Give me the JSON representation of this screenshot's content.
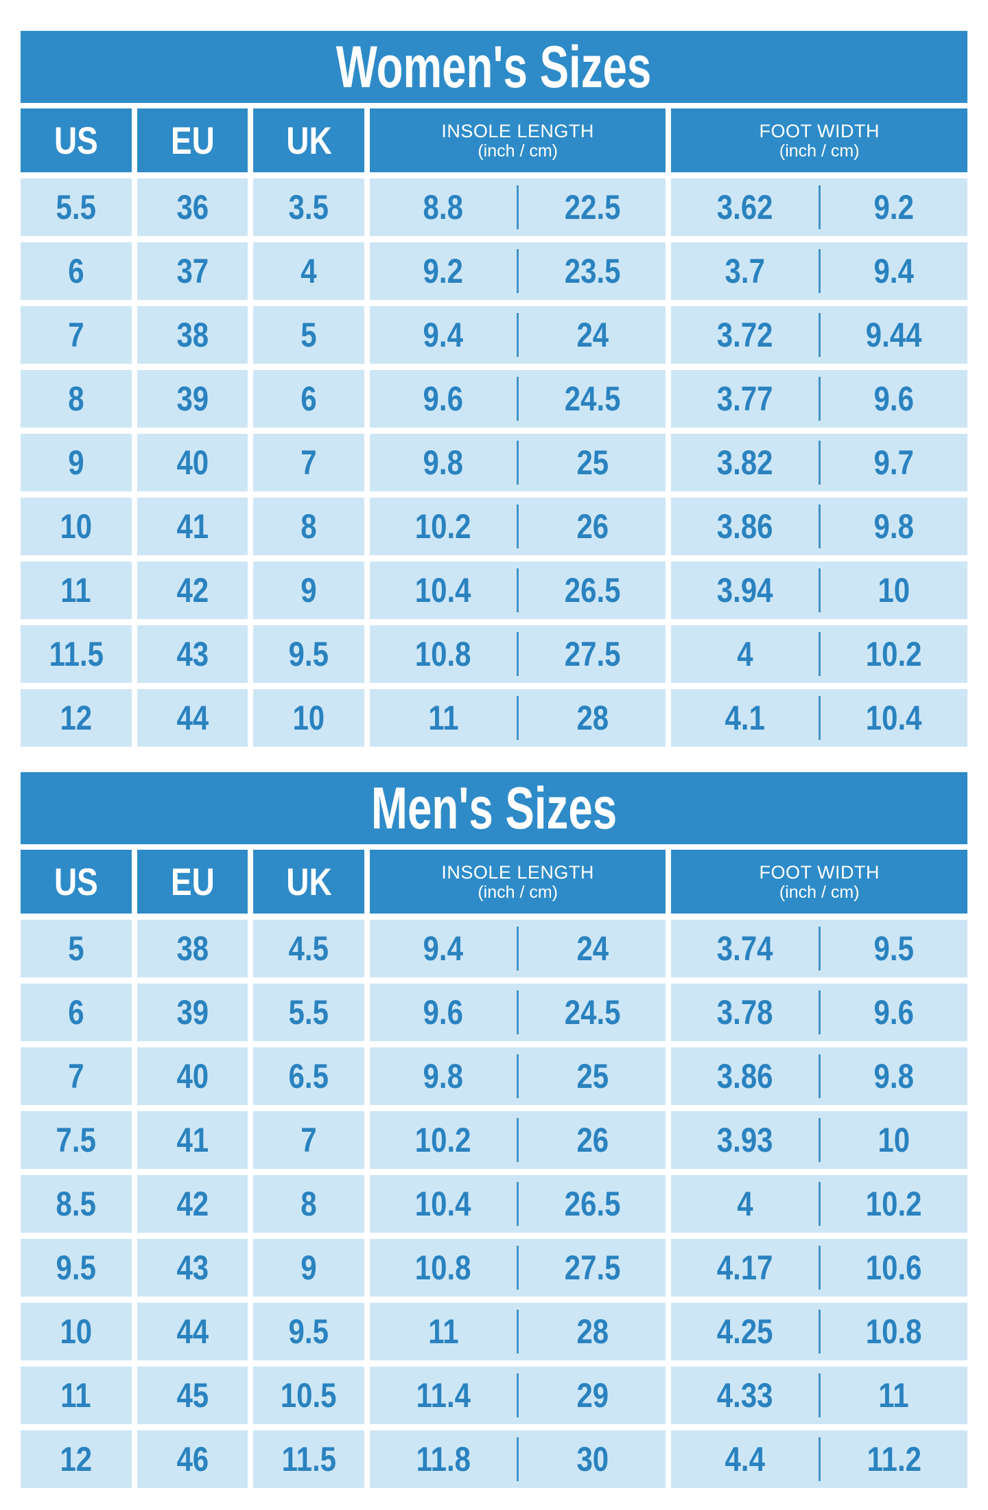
{
  "colors": {
    "header_blue": "#2e8bc8",
    "cell_light_blue": "#cde6f6",
    "value_text_blue": "#2a82bf",
    "background": "#ffffff"
  },
  "chart_data": [
    {
      "type": "table",
      "title": "Women's Sizes",
      "headers": {
        "us": "US",
        "eu": "EU",
        "uk": "UK",
        "insole_line1": "INSOLE LENGTH",
        "insole_line2": "(inch / cm)",
        "foot_line1": "FOOT WIDTH",
        "foot_line2": "(inch / cm)"
      },
      "rows": [
        {
          "us": "5.5",
          "eu": "36",
          "uk": "3.5",
          "insole_in": "8.8",
          "insole_cm": "22.5",
          "width_in": "3.62",
          "width_cm": "9.2"
        },
        {
          "us": "6",
          "eu": "37",
          "uk": "4",
          "insole_in": "9.2",
          "insole_cm": "23.5",
          "width_in": "3.7",
          "width_cm": "9.4"
        },
        {
          "us": "7",
          "eu": "38",
          "uk": "5",
          "insole_in": "9.4",
          "insole_cm": "24",
          "width_in": "3.72",
          "width_cm": "9.44"
        },
        {
          "us": "8",
          "eu": "39",
          "uk": "6",
          "insole_in": "9.6",
          "insole_cm": "24.5",
          "width_in": "3.77",
          "width_cm": "9.6"
        },
        {
          "us": "9",
          "eu": "40",
          "uk": "7",
          "insole_in": "9.8",
          "insole_cm": "25",
          "width_in": "3.82",
          "width_cm": "9.7"
        },
        {
          "us": "10",
          "eu": "41",
          "uk": "8",
          "insole_in": "10.2",
          "insole_cm": "26",
          "width_in": "3.86",
          "width_cm": "9.8"
        },
        {
          "us": "11",
          "eu": "42",
          "uk": "9",
          "insole_in": "10.4",
          "insole_cm": "26.5",
          "width_in": "3.94",
          "width_cm": "10"
        },
        {
          "us": "11.5",
          "eu": "43",
          "uk": "9.5",
          "insole_in": "10.8",
          "insole_cm": "27.5",
          "width_in": "4",
          "width_cm": "10.2"
        },
        {
          "us": "12",
          "eu": "44",
          "uk": "10",
          "insole_in": "11",
          "insole_cm": "28",
          "width_in": "4.1",
          "width_cm": "10.4"
        }
      ]
    },
    {
      "type": "table",
      "title": "Men's Sizes",
      "headers": {
        "us": "US",
        "eu": "EU",
        "uk": "UK",
        "insole_line1": "INSOLE LENGTH",
        "insole_line2": "(inch / cm)",
        "foot_line1": "FOOT WIDTH",
        "foot_line2": "(inch / cm)"
      },
      "rows": [
        {
          "us": "5",
          "eu": "38",
          "uk": "4.5",
          "insole_in": "9.4",
          "insole_cm": "24",
          "width_in": "3.74",
          "width_cm": "9.5"
        },
        {
          "us": "6",
          "eu": "39",
          "uk": "5.5",
          "insole_in": "9.6",
          "insole_cm": "24.5",
          "width_in": "3.78",
          "width_cm": "9.6"
        },
        {
          "us": "7",
          "eu": "40",
          "uk": "6.5",
          "insole_in": "9.8",
          "insole_cm": "25",
          "width_in": "3.86",
          "width_cm": "9.8"
        },
        {
          "us": "7.5",
          "eu": "41",
          "uk": "7",
          "insole_in": "10.2",
          "insole_cm": "26",
          "width_in": "3.93",
          "width_cm": "10"
        },
        {
          "us": "8.5",
          "eu": "42",
          "uk": "8",
          "insole_in": "10.4",
          "insole_cm": "26.5",
          "width_in": "4",
          "width_cm": "10.2"
        },
        {
          "us": "9.5",
          "eu": "43",
          "uk": "9",
          "insole_in": "10.8",
          "insole_cm": "27.5",
          "width_in": "4.17",
          "width_cm": "10.6"
        },
        {
          "us": "10",
          "eu": "44",
          "uk": "9.5",
          "insole_in": "11",
          "insole_cm": "28",
          "width_in": "4.25",
          "width_cm": "10.8"
        },
        {
          "us": "11",
          "eu": "45",
          "uk": "10.5",
          "insole_in": "11.4",
          "insole_cm": "29",
          "width_in": "4.33",
          "width_cm": "11"
        },
        {
          "us": "12",
          "eu": "46",
          "uk": "11.5",
          "insole_in": "11.8",
          "insole_cm": "30",
          "width_in": "4.4",
          "width_cm": "11.2"
        }
      ]
    }
  ]
}
